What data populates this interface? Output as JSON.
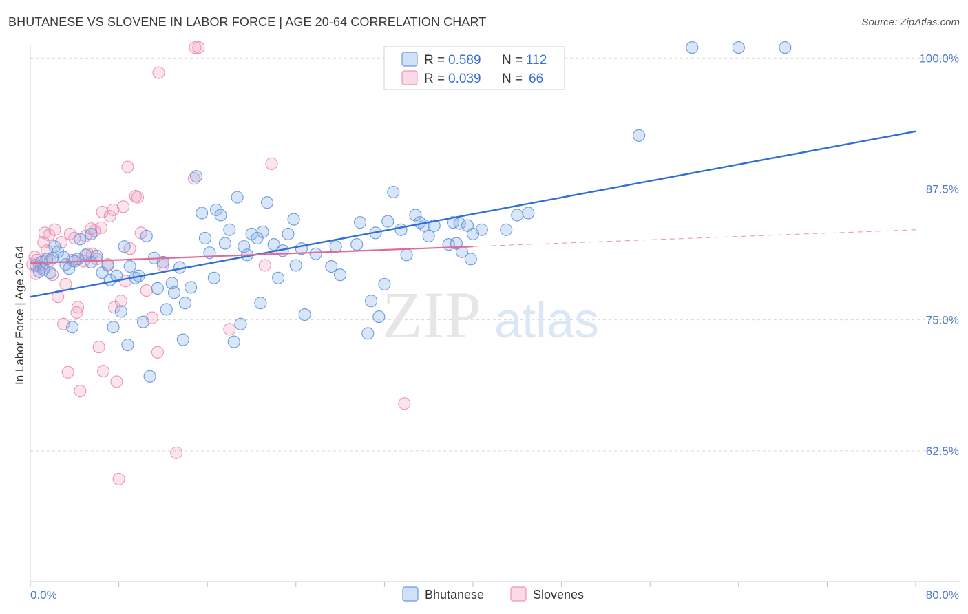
{
  "title": "BHUTANESE VS SLOVENE IN LABOR FORCE | AGE 20-64 CORRELATION CHART",
  "source": "Source: ZipAtlas.com",
  "watermark": {
    "zip": "ZIP",
    "atlas": "atlas"
  },
  "colors": {
    "blue": "#6a9be0",
    "blue_fill": "rgba(120,165,230,0.28)",
    "blue_line": "#2f6fd6",
    "pink": "#ee93b3",
    "pink_fill": "rgba(240,150,185,0.25)",
    "pink_line": "#e06b98",
    "tick": "#4a7bd0",
    "grid": "#d8d8d8"
  },
  "legend": {
    "r_label": "R =",
    "n_label": "N =",
    "rows": [
      {
        "r": "0.589",
        "n": "112"
      },
      {
        "r": "0.039",
        "n": "66"
      }
    ]
  },
  "bottom_legend": [
    "Bhutanese",
    "Slovenes"
  ],
  "chart_data": {
    "type": "scatter",
    "title": "BHUTANESE VS SLOVENE IN LABOR FORCE | AGE 20-64 CORRELATION CHART",
    "ylabel": "In Labor Force | Age 20-64",
    "xlabel": "",
    "x_tick_labels": [
      "0.0%",
      "80.0%"
    ],
    "y_tick_labels": [
      "100.0%",
      "87.5%",
      "75.0%",
      "62.5%"
    ],
    "y_ticks": [
      100.0,
      87.5,
      75.0,
      62.5
    ],
    "xlim": [
      0,
      80
    ],
    "ylim": [
      50.0,
      101.2
    ],
    "grid": true,
    "legend_placement": "top-center",
    "series": [
      {
        "name": "Bhutanese",
        "r": 0.589,
        "n": 112,
        "trend": {
          "x": [
            0,
            80
          ],
          "y": [
            77.2,
            93.0
          ]
        },
        "points": [
          [
            0.5,
            80.2
          ],
          [
            0.8,
            79.6
          ],
          [
            1.0,
            80.5
          ],
          [
            1.2,
            79.8
          ],
          [
            1.5,
            80.8
          ],
          [
            1.8,
            79.5
          ],
          [
            2.0,
            80.9
          ],
          [
            2.2,
            82.0
          ],
          [
            2.5,
            81.5
          ],
          [
            3.0,
            81.0
          ],
          [
            3.2,
            80.3
          ],
          [
            3.5,
            79.9
          ],
          [
            3.8,
            74.3
          ],
          [
            4.0,
            80.6
          ],
          [
            4.3,
            80.8
          ],
          [
            4.5,
            82.7
          ],
          [
            5.0,
            81.2
          ],
          [
            5.5,
            80.5
          ],
          [
            5.5,
            83.2
          ],
          [
            6.0,
            81.1
          ],
          [
            6.5,
            79.5
          ],
          [
            7.0,
            80.2
          ],
          [
            7.2,
            78.8
          ],
          [
            7.5,
            74.3
          ],
          [
            7.8,
            79.2
          ],
          [
            8.2,
            75.8
          ],
          [
            8.5,
            82.0
          ],
          [
            8.8,
            72.6
          ],
          [
            9.0,
            80.1
          ],
          [
            9.5,
            79.0
          ],
          [
            9.8,
            79.2
          ],
          [
            10.2,
            74.8
          ],
          [
            10.5,
            83.0
          ],
          [
            10.8,
            69.6
          ],
          [
            11.2,
            80.9
          ],
          [
            11.5,
            78.0
          ],
          [
            12.0,
            80.5
          ],
          [
            12.3,
            76.0
          ],
          [
            12.8,
            78.5
          ],
          [
            13.0,
            77.6
          ],
          [
            13.5,
            80.0
          ],
          [
            13.8,
            73.1
          ],
          [
            14.0,
            76.6
          ],
          [
            14.5,
            78.1
          ],
          [
            15.0,
            88.7
          ],
          [
            15.5,
            85.2
          ],
          [
            15.8,
            82.8
          ],
          [
            16.2,
            81.4
          ],
          [
            16.6,
            79.0
          ],
          [
            16.8,
            85.5
          ],
          [
            17.2,
            85.0
          ],
          [
            17.6,
            82.3
          ],
          [
            18.0,
            83.6
          ],
          [
            18.4,
            72.9
          ],
          [
            18.7,
            86.7
          ],
          [
            19.0,
            74.6
          ],
          [
            19.3,
            82.0
          ],
          [
            19.6,
            81.2
          ],
          [
            20.0,
            83.2
          ],
          [
            20.5,
            82.8
          ],
          [
            20.8,
            76.6
          ],
          [
            21.0,
            83.4
          ],
          [
            21.4,
            86.2
          ],
          [
            22.0,
            82.2
          ],
          [
            22.4,
            79.0
          ],
          [
            22.8,
            81.6
          ],
          [
            23.3,
            83.2
          ],
          [
            23.8,
            84.6
          ],
          [
            24.0,
            80.2
          ],
          [
            24.5,
            81.8
          ],
          [
            24.8,
            75.5
          ],
          [
            25.8,
            81.3
          ],
          [
            27.2,
            80.1
          ],
          [
            27.6,
            82.0
          ],
          [
            28.0,
            79.3
          ],
          [
            29.5,
            82.2
          ],
          [
            29.8,
            84.3
          ],
          [
            30.5,
            73.7
          ],
          [
            30.8,
            76.8
          ],
          [
            31.2,
            83.3
          ],
          [
            31.5,
            75.3
          ],
          [
            32.0,
            78.4
          ],
          [
            32.3,
            84.4
          ],
          [
            32.8,
            87.2
          ],
          [
            33.5,
            83.6
          ],
          [
            34.0,
            81.2
          ],
          [
            34.8,
            85.0
          ],
          [
            35.2,
            84.3
          ],
          [
            35.6,
            84.0
          ],
          [
            36.0,
            83.0
          ],
          [
            36.5,
            84.0
          ],
          [
            37.8,
            82.2
          ],
          [
            38.2,
            84.3
          ],
          [
            38.5,
            82.3
          ],
          [
            38.8,
            84.2
          ],
          [
            39.0,
            81.5
          ],
          [
            39.5,
            84.0
          ],
          [
            39.8,
            80.8
          ],
          [
            40.0,
            83.2
          ],
          [
            40.8,
            83.6
          ],
          [
            43.0,
            83.6
          ],
          [
            44.0,
            85.0
          ],
          [
            45.0,
            85.2
          ],
          [
            55.0,
            92.6
          ],
          [
            59.8,
            101.0
          ],
          [
            64.0,
            101.0
          ],
          [
            68.2,
            101.0
          ]
        ]
      },
      {
        "name": "Slovenes",
        "r": 0.039,
        "n": 66,
        "trend": {
          "x": [
            0,
            40
          ],
          "y": [
            80.4,
            82.0
          ],
          "dashed_to": {
            "x": 80,
            "y": 83.6
          }
        },
        "points": [
          [
            0.2,
            80.3
          ],
          [
            0.4,
            81.0
          ],
          [
            0.5,
            79.4
          ],
          [
            0.6,
            80.7
          ],
          [
            0.8,
            80.2
          ],
          [
            1.0,
            80.0
          ],
          [
            1.2,
            82.4
          ],
          [
            1.3,
            83.3
          ],
          [
            1.5,
            81.6
          ],
          [
            1.7,
            83.1
          ],
          [
            1.8,
            80.7
          ],
          [
            2.0,
            79.3
          ],
          [
            2.2,
            83.6
          ],
          [
            2.5,
            77.2
          ],
          [
            2.8,
            82.4
          ],
          [
            3.0,
            74.6
          ],
          [
            3.2,
            78.4
          ],
          [
            3.4,
            70.0
          ],
          [
            3.6,
            83.2
          ],
          [
            3.8,
            80.7
          ],
          [
            4.0,
            82.8
          ],
          [
            4.2,
            75.7
          ],
          [
            4.3,
            76.2
          ],
          [
            4.5,
            68.2
          ],
          [
            4.8,
            80.6
          ],
          [
            5.0,
            83.0
          ],
          [
            5.2,
            81.3
          ],
          [
            5.5,
            83.7
          ],
          [
            5.6,
            81.3
          ],
          [
            5.8,
            83.5
          ],
          [
            6.0,
            80.8
          ],
          [
            6.2,
            72.4
          ],
          [
            6.4,
            83.8
          ],
          [
            6.5,
            85.3
          ],
          [
            6.6,
            70.1
          ],
          [
            7.0,
            80.3
          ],
          [
            7.2,
            84.9
          ],
          [
            7.5,
            85.5
          ],
          [
            7.6,
            76.2
          ],
          [
            7.8,
            69.1
          ],
          [
            8.0,
            59.8
          ],
          [
            8.2,
            76.8
          ],
          [
            8.4,
            85.8
          ],
          [
            8.6,
            78.7
          ],
          [
            8.8,
            89.6
          ],
          [
            9.0,
            81.8
          ],
          [
            9.5,
            86.8
          ],
          [
            9.7,
            86.7
          ],
          [
            10.0,
            83.3
          ],
          [
            10.5,
            77.8
          ],
          [
            11.0,
            75.2
          ],
          [
            11.5,
            71.9
          ],
          [
            11.6,
            98.6
          ],
          [
            12.0,
            80.2
          ],
          [
            13.2,
            62.3
          ],
          [
            14.8,
            88.5
          ],
          [
            14.9,
            101.0
          ],
          [
            15.2,
            101.0
          ],
          [
            18.0,
            74.1
          ],
          [
            21.2,
            80.2
          ],
          [
            21.8,
            89.9
          ],
          [
            33.8,
            67.0
          ]
        ]
      }
    ]
  }
}
